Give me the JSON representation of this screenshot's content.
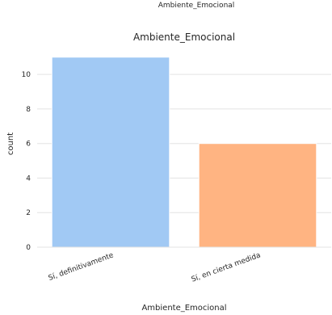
{
  "top_cropped_text": "Ambiente_Emocional",
  "chart_data": {
    "type": "bar",
    "title": "Ambiente_Emocional",
    "xlabel": "Ambiente_Emocional",
    "ylabel": "count",
    "categories": [
      "Sí, definitivamente",
      "Sí, en cierta medida"
    ],
    "values": [
      11,
      6
    ],
    "colors": [
      "#a1c9f4",
      "#ffb482"
    ],
    "ylim": [
      0,
      11.55
    ],
    "yticks": [
      0,
      2,
      4,
      6,
      8,
      10
    ],
    "grid": true,
    "legend": "none"
  }
}
